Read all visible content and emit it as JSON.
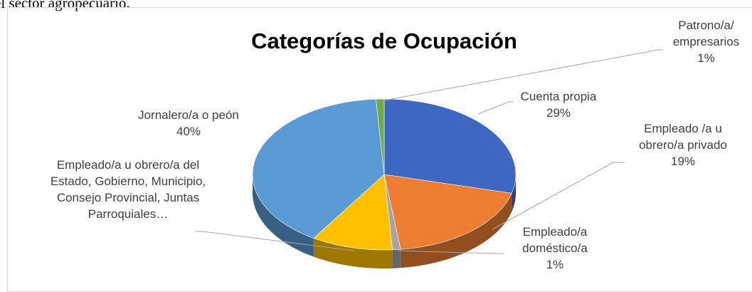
{
  "page_text": "el sector agropecuario.",
  "chart_data": {
    "type": "pie3d",
    "title": "Categorías de Ocupación",
    "categories": [
      "Cuenta propia",
      "Empleado /a u obrero/a privado",
      "Empleado/a doméstico/a",
      "Empleado/a u obrero/a del Estado, Gobierno, Municipio, Consejo Provincial, Juntas Parroquiales…",
      "Jornalero/a o peón",
      "Patrono/a/ empresarios"
    ],
    "values": [
      29,
      19,
      1,
      10,
      40,
      1
    ],
    "value_labels": [
      "29%",
      "19%",
      "1%",
      null,
      "40%",
      "1%"
    ],
    "colors": [
      "#3e67c2",
      "#ed7d31",
      "#a5a5a5",
      "#ffc000",
      "#5b9bd5",
      "#70ad47"
    ]
  }
}
